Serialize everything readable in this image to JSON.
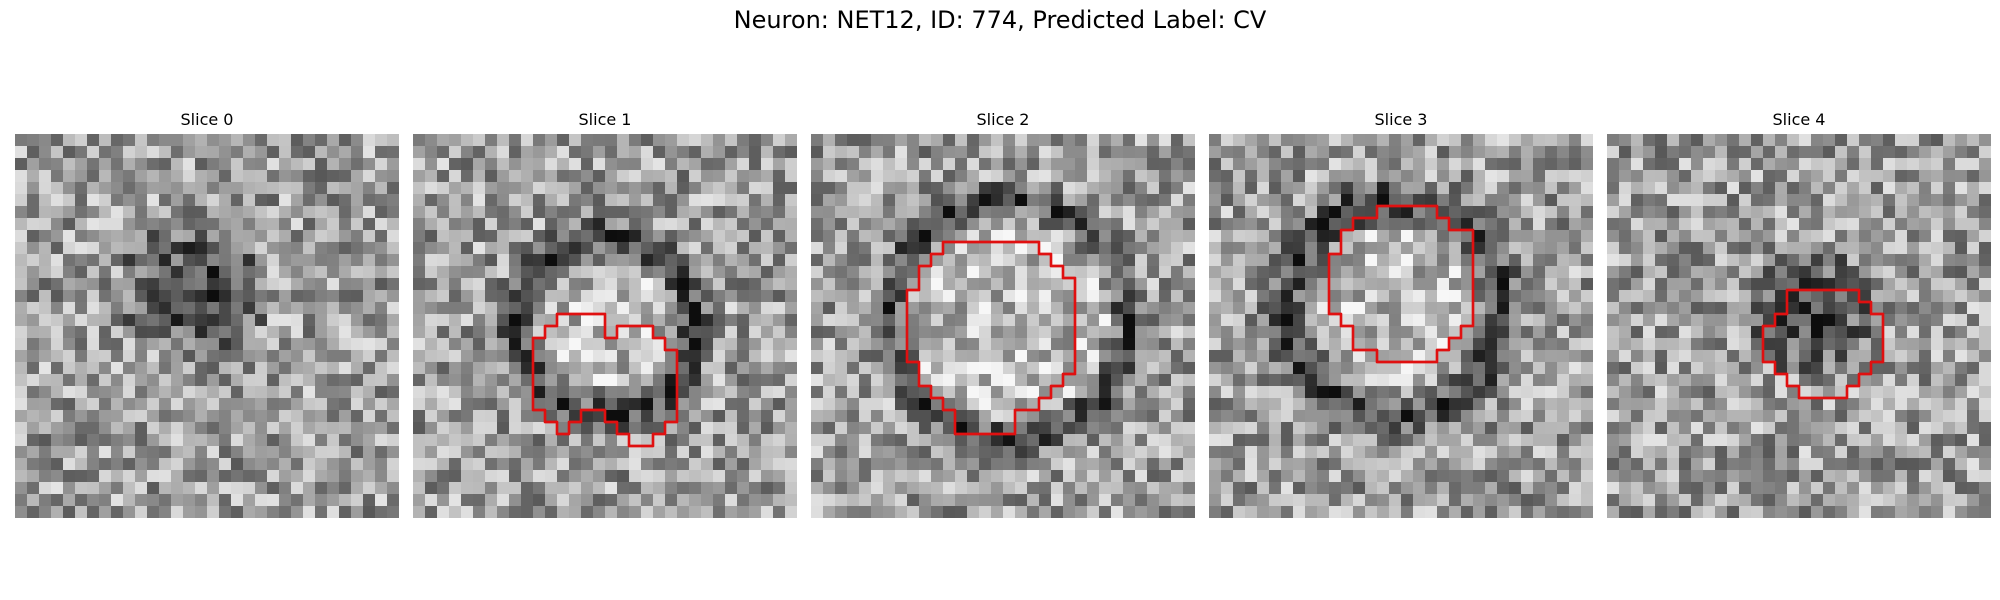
{
  "figure": {
    "title": "Neuron: NET12, ID: 774, Predicted Label: CV",
    "contour_color": "#e01010"
  },
  "slices": [
    {
      "title": "Slice 0",
      "image": "grayscale-em-patch",
      "has_contour": false
    },
    {
      "title": "Slice 1",
      "image": "grayscale-em-patch",
      "has_contour": true
    },
    {
      "title": "Slice 2",
      "image": "grayscale-em-patch",
      "has_contour": true
    },
    {
      "title": "Slice 3",
      "image": "grayscale-em-patch",
      "has_contour": true
    },
    {
      "title": "Slice 4",
      "image": "grayscale-em-patch",
      "has_contour": true
    }
  ]
}
